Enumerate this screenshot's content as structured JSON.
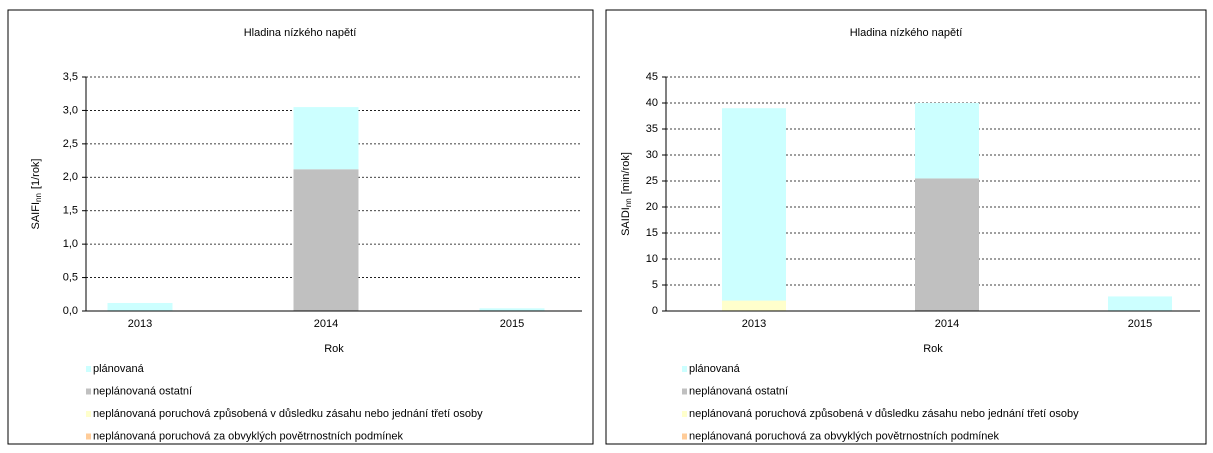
{
  "chart_data": [
    {
      "type": "stacked_bar",
      "title": "Hladina nízkého napětí",
      "ylabel": "SAIFI",
      "ylabel_sub": "nn",
      "ylabel_unit": "[1/rok]",
      "xlabel": "Rok",
      "categories": [
        "2013",
        "2014",
        "2015"
      ],
      "series": [
        {
          "name": "plánovaná",
          "color": "#ccffff",
          "values": [
            0.12,
            0.93,
            0.04
          ]
        },
        {
          "name": "neplánovaná ostatní",
          "color": "#c0c0c0",
          "values": [
            0,
            2.12,
            0
          ]
        },
        {
          "name": "neplánovaná poruchová způsobená v důsledku zásahu nebo jednání třetí osoby",
          "color": "#ffffcc",
          "values": [
            0,
            0,
            0
          ]
        },
        {
          "name": "neplánovaná poruchová za obvyklých povětrnostních podmínek",
          "color": "#ffcc99",
          "values": [
            0,
            0,
            0
          ]
        }
      ],
      "ylim": [
        0,
        3.5
      ],
      "yticks": [
        {
          "value": 0,
          "label": "0,0"
        },
        {
          "value": 0.5,
          "label": "0,5"
        },
        {
          "value": 1,
          "label": "1,0"
        },
        {
          "value": 1.5,
          "label": "1,5"
        },
        {
          "value": 2,
          "label": "2,0"
        },
        {
          "value": 2.5,
          "label": "2,5"
        },
        {
          "value": 3,
          "label": "3,0"
        },
        {
          "value": 3.5,
          "label": "3,5"
        }
      ],
      "grid": true
    },
    {
      "type": "stacked_bar",
      "title": "Hladina nízkého napětí",
      "ylabel": "SAIDI",
      "ylabel_sub": "nn",
      "ylabel_unit": "[min/rok]",
      "xlabel": "Rok",
      "categories": [
        "2013",
        "2014",
        "2015"
      ],
      "series": [
        {
          "name": "plánovaná",
          "color": "#ccffff",
          "values": [
            37,
            14.5,
            2.8
          ]
        },
        {
          "name": "neplánovaná ostatní",
          "color": "#c0c0c0",
          "values": [
            0,
            25.5,
            0
          ]
        },
        {
          "name": "neplánovaná poruchová způsobená v důsledku zásahu nebo jednání třetí osoby",
          "color": "#ffffcc",
          "values": [
            2,
            0,
            0
          ]
        },
        {
          "name": "neplánovaná poruchová za obvyklých povětrnostních podmínek",
          "color": "#ffcc99",
          "values": [
            0,
            0,
            0
          ]
        }
      ],
      "ylim": [
        0,
        45
      ],
      "yticks": [
        0,
        5,
        10,
        15,
        20,
        25,
        30,
        35,
        40,
        45
      ],
      "grid": true
    }
  ]
}
